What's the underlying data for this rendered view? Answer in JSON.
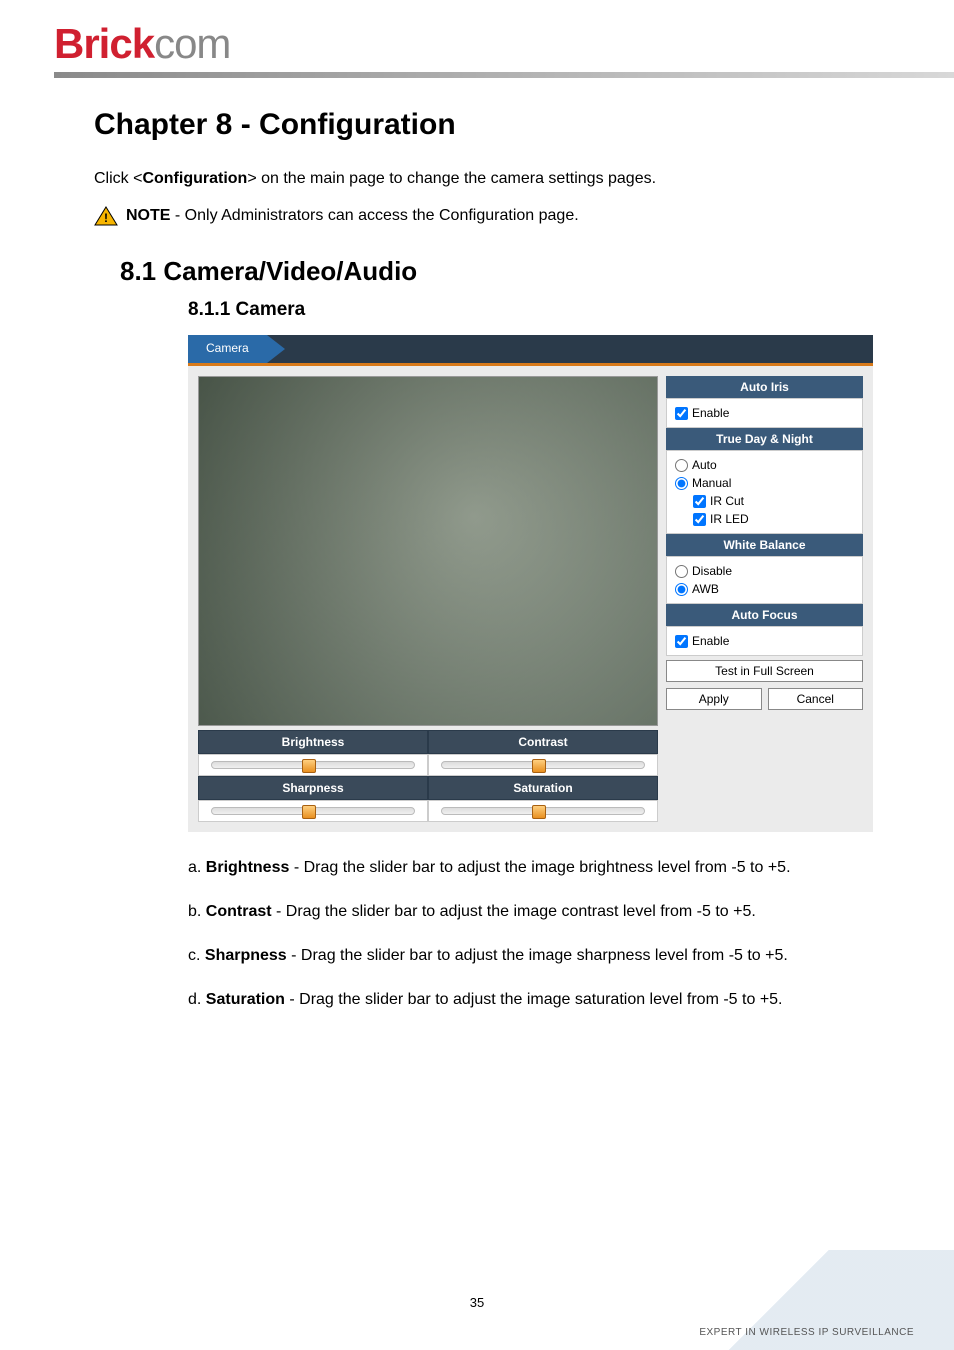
{
  "logo": {
    "part1": "Brick",
    "part2": "com"
  },
  "chapter_title": "Chapter 8 -  Configuration",
  "intro": {
    "prefix": "Click <",
    "bold": "Configuration",
    "suffix": "> on the main page to change the camera settings pages."
  },
  "note": {
    "label": "NOTE",
    "text": " - Only Administrators can access the Configuration page."
  },
  "section_title": "8.1  Camera/Video/Audio",
  "subsection_title": "8.1.1   Camera",
  "screenshot": {
    "tab_label": "Camera",
    "colors": {
      "tab_active_bg": "#2a6aa8",
      "tab_bar_bg": "#2a3a4a",
      "orange_line": "#d87a1a",
      "panel_bg": "#ebebeb",
      "section_hdr_bg": "#3a5a7a",
      "slider_hdr_bg": "#3a4a5a",
      "slider_thumb_start": "#ffd080",
      "slider_thumb_end": "#e89020"
    },
    "sliders": [
      {
        "label": "Brightness",
        "position_pct": 48
      },
      {
        "label": "Contrast",
        "position_pct": 48
      },
      {
        "label": "Sharpness",
        "position_pct": 48
      },
      {
        "label": "Saturation",
        "position_pct": 48
      }
    ],
    "right_panel": {
      "auto_iris": {
        "title": "Auto Iris",
        "enable_label": "Enable",
        "enable_checked": true
      },
      "true_day_night": {
        "title": "True Day & Night",
        "auto_label": "Auto",
        "auto_selected": false,
        "manual_label": "Manual",
        "manual_selected": true,
        "ir_cut_label": "IR Cut",
        "ir_cut_checked": true,
        "ir_led_label": "IR LED",
        "ir_led_checked": true
      },
      "white_balance": {
        "title": "White Balance",
        "disable_label": "Disable",
        "disable_selected": false,
        "awb_label": "AWB",
        "awb_selected": true
      },
      "auto_focus": {
        "title": "Auto Focus",
        "enable_label": "Enable",
        "enable_checked": true
      },
      "test_full_screen": "Test in Full Screen",
      "apply": "Apply",
      "cancel": "Cancel"
    }
  },
  "descriptions": [
    {
      "letter": "a.",
      "bold": "Brightness",
      "text": " - Drag the slider bar to adjust the image brightness level from -5 to +5."
    },
    {
      "letter": "b.",
      "bold": "Contrast",
      "text": " - Drag the slider bar to adjust the image contrast level from -5 to +5."
    },
    {
      "letter": "c.",
      "bold": "Sharpness",
      "text": " - Drag the slider bar to adjust the image sharpness level from -5 to +5."
    },
    {
      "letter": "d.",
      "bold": "Saturation",
      "text": " - Drag the slider bar to adjust the image saturation level from -5 to +5."
    }
  ],
  "page_number": "35",
  "footer_text": "EXPERT IN WIRELESS IP SURVEILLANCE"
}
